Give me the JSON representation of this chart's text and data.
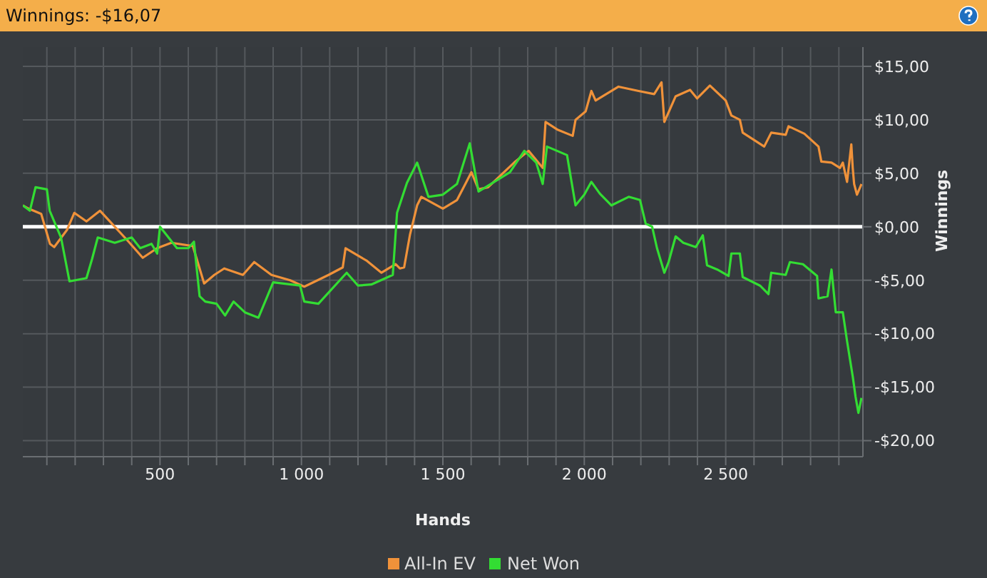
{
  "chart_data": {
    "type": "line",
    "title": "Winnings: -$16,07",
    "xlabel": "Hands",
    "ylabel": "Winnings",
    "xlim": [
      15,
      2985
    ],
    "xticks": [
      {
        "value": 100,
        "label": null
      },
      {
        "value": 200,
        "label": null
      },
      {
        "value": 300,
        "label": null
      },
      {
        "value": 400,
        "label": null
      },
      500,
      {
        "value": 600,
        "label": null
      },
      {
        "value": 700,
        "label": null
      },
      {
        "value": 800,
        "label": null
      },
      {
        "value": 900,
        "label": null
      },
      {
        "value": 1000,
        "label": "1 000"
      },
      {
        "value": 1100,
        "label": null
      },
      {
        "value": 1200,
        "label": null
      },
      {
        "value": 1300,
        "label": null
      },
      {
        "value": 1400,
        "label": null
      },
      {
        "value": 1500,
        "label": "1 500"
      },
      {
        "value": 1600,
        "label": null
      },
      {
        "value": 1700,
        "label": null
      },
      {
        "value": 1800,
        "label": null
      },
      {
        "value": 1900,
        "label": null
      },
      {
        "value": 2000,
        "label": "2 000"
      },
      {
        "value": 2100,
        "label": null
      },
      {
        "value": 2200,
        "label": null
      },
      {
        "value": 2300,
        "label": null
      },
      {
        "value": 2400,
        "label": null
      },
      {
        "value": 2500,
        "label": "2 500"
      },
      {
        "value": 2600,
        "label": null
      },
      {
        "value": 2700,
        "label": null
      },
      {
        "value": 2800,
        "label": null
      },
      {
        "value": 2900,
        "label": null
      }
    ],
    "ylim": [
      -21.5,
      16.8
    ],
    "yticks": [
      {
        "value": -20,
        "label": "-$20,00"
      },
      {
        "value": -15,
        "label": "-$15,00"
      },
      {
        "value": -10,
        "label": "-$10,00"
      },
      {
        "value": -5,
        "label": "-$5,00"
      },
      {
        "value": 0,
        "label": "$0,00"
      },
      {
        "value": 5,
        "label": "$5,00"
      },
      {
        "value": 10,
        "label": "$10,00"
      },
      {
        "value": 15,
        "label": "$15,00"
      }
    ],
    "grid": true,
    "legend": "bottom",
    "marker": "none",
    "line_style": "solid",
    "ref_lines": [
      {
        "axis": "y",
        "value": 0,
        "color": "#ffffff"
      }
    ],
    "series": [
      {
        "name": "All-In EV",
        "color": "#f0923a",
        "x": [
          15,
          35,
          80,
          111,
          126,
          171,
          197,
          240,
          288,
          323,
          389,
          439,
          490,
          540,
          616,
          656,
          692,
          727,
          793,
          833,
          894,
          960,
          1010,
          1096,
          1146,
          1156,
          1232,
          1283,
          1333,
          1348,
          1363,
          1384,
          1409,
          1424,
          1500,
          1550,
          1601,
          1626,
          1660,
          1752,
          1803,
          1853,
          1863,
          1904,
          1959,
          1969,
          2005,
          2025,
          2040,
          2121,
          2192,
          2247,
          2273,
          2283,
          2323,
          2374,
          2399,
          2444,
          2500,
          2520,
          2550,
          2560,
          2636,
          2661,
          2712,
          2722,
          2778,
          2828,
          2838,
          2874,
          2904,
          2914,
          2929,
          2944,
          2949,
          2954,
          2964,
          2980
        ],
        "values": [
          2,
          1.7,
          1.2,
          -1.6,
          -1.9,
          -0.3,
          1.3,
          0.5,
          1.5,
          0.5,
          -1.4,
          -2.9,
          -2,
          -1.5,
          -1.8,
          -5.3,
          -4.5,
          -3.9,
          -4.5,
          -3.3,
          -4.5,
          -5,
          -5.6,
          -4.5,
          -3.8,
          -2,
          -3.2,
          -4.3,
          -3.5,
          -3.9,
          -3.8,
          -0.7,
          2,
          2.8,
          1.7,
          2.5,
          5.1,
          3.5,
          3.7,
          6,
          7.1,
          5.5,
          9.8,
          9.1,
          8.5,
          10,
          10.8,
          12.7,
          11.8,
          13.1,
          12.7,
          12.4,
          13.5,
          9.8,
          12.2,
          12.8,
          12,
          13.2,
          11.8,
          10.4,
          10,
          8.8,
          7.5,
          8.8,
          8.6,
          9.4,
          8.7,
          7.5,
          6.1,
          6,
          5.5,
          6,
          4.2,
          7.7,
          5.5,
          4,
          3,
          4
        ]
      },
      {
        "name": "Net Won",
        "color": "#33dd33",
        "x": [
          15,
          40,
          60,
          100,
          110,
          150,
          180,
          240,
          260,
          280,
          340,
          400,
          430,
          470,
          490,
          500,
          560,
          600,
          620,
          640,
          660,
          700,
          730,
          760,
          800,
          848,
          900,
          995,
          1010,
          1060,
          1160,
          1200,
          1247,
          1323,
          1338,
          1373,
          1409,
          1449,
          1500,
          1550,
          1595,
          1626,
          1651,
          1737,
          1788,
          1830,
          1853,
          1868,
          1939,
          1969,
          2000,
          2025,
          2055,
          2096,
          2157,
          2197,
          2217,
          2240,
          2257,
          2283,
          2298,
          2323,
          2350,
          2394,
          2419,
          2434,
          2470,
          2510,
          2520,
          2550,
          2560,
          2621,
          2651,
          2661,
          2712,
          2727,
          2773,
          2823,
          2828,
          2860,
          2874,
          2889,
          2914,
          2929,
          2949,
          2959,
          2969,
          2980
        ],
        "values": [
          2,
          1.5,
          3.7,
          3.5,
          1.5,
          -1,
          -5.1,
          -4.8,
          -3,
          -1,
          -1.5,
          -1,
          -2,
          -1.6,
          -2.5,
          0,
          -2,
          -2,
          -1.4,
          -6.5,
          -7,
          -7.2,
          -8.3,
          -7,
          -8,
          -8.5,
          -5.2,
          -5.5,
          -7,
          -7.2,
          -4.3,
          -5.5,
          -5.4,
          -4.5,
          1.3,
          4.1,
          6,
          2.8,
          3,
          4,
          7.8,
          3.3,
          3.7,
          5.1,
          7.1,
          6,
          4,
          7.5,
          6.7,
          2,
          3,
          4.2,
          3.1,
          2,
          2.8,
          2.5,
          0.3,
          0,
          -2,
          -4.3,
          -3.3,
          -0.9,
          -1.5,
          -1.9,
          -0.8,
          -3.6,
          -4,
          -4.6,
          -2.5,
          -2.5,
          -4.7,
          -5.5,
          -6.3,
          -4.3,
          -4.5,
          -3.3,
          -3.5,
          -4.6,
          -6.7,
          -6.5,
          -4,
          -8,
          -8,
          -10.7,
          -14,
          -15.9,
          -17.4,
          -16
        ]
      }
    ]
  }
}
